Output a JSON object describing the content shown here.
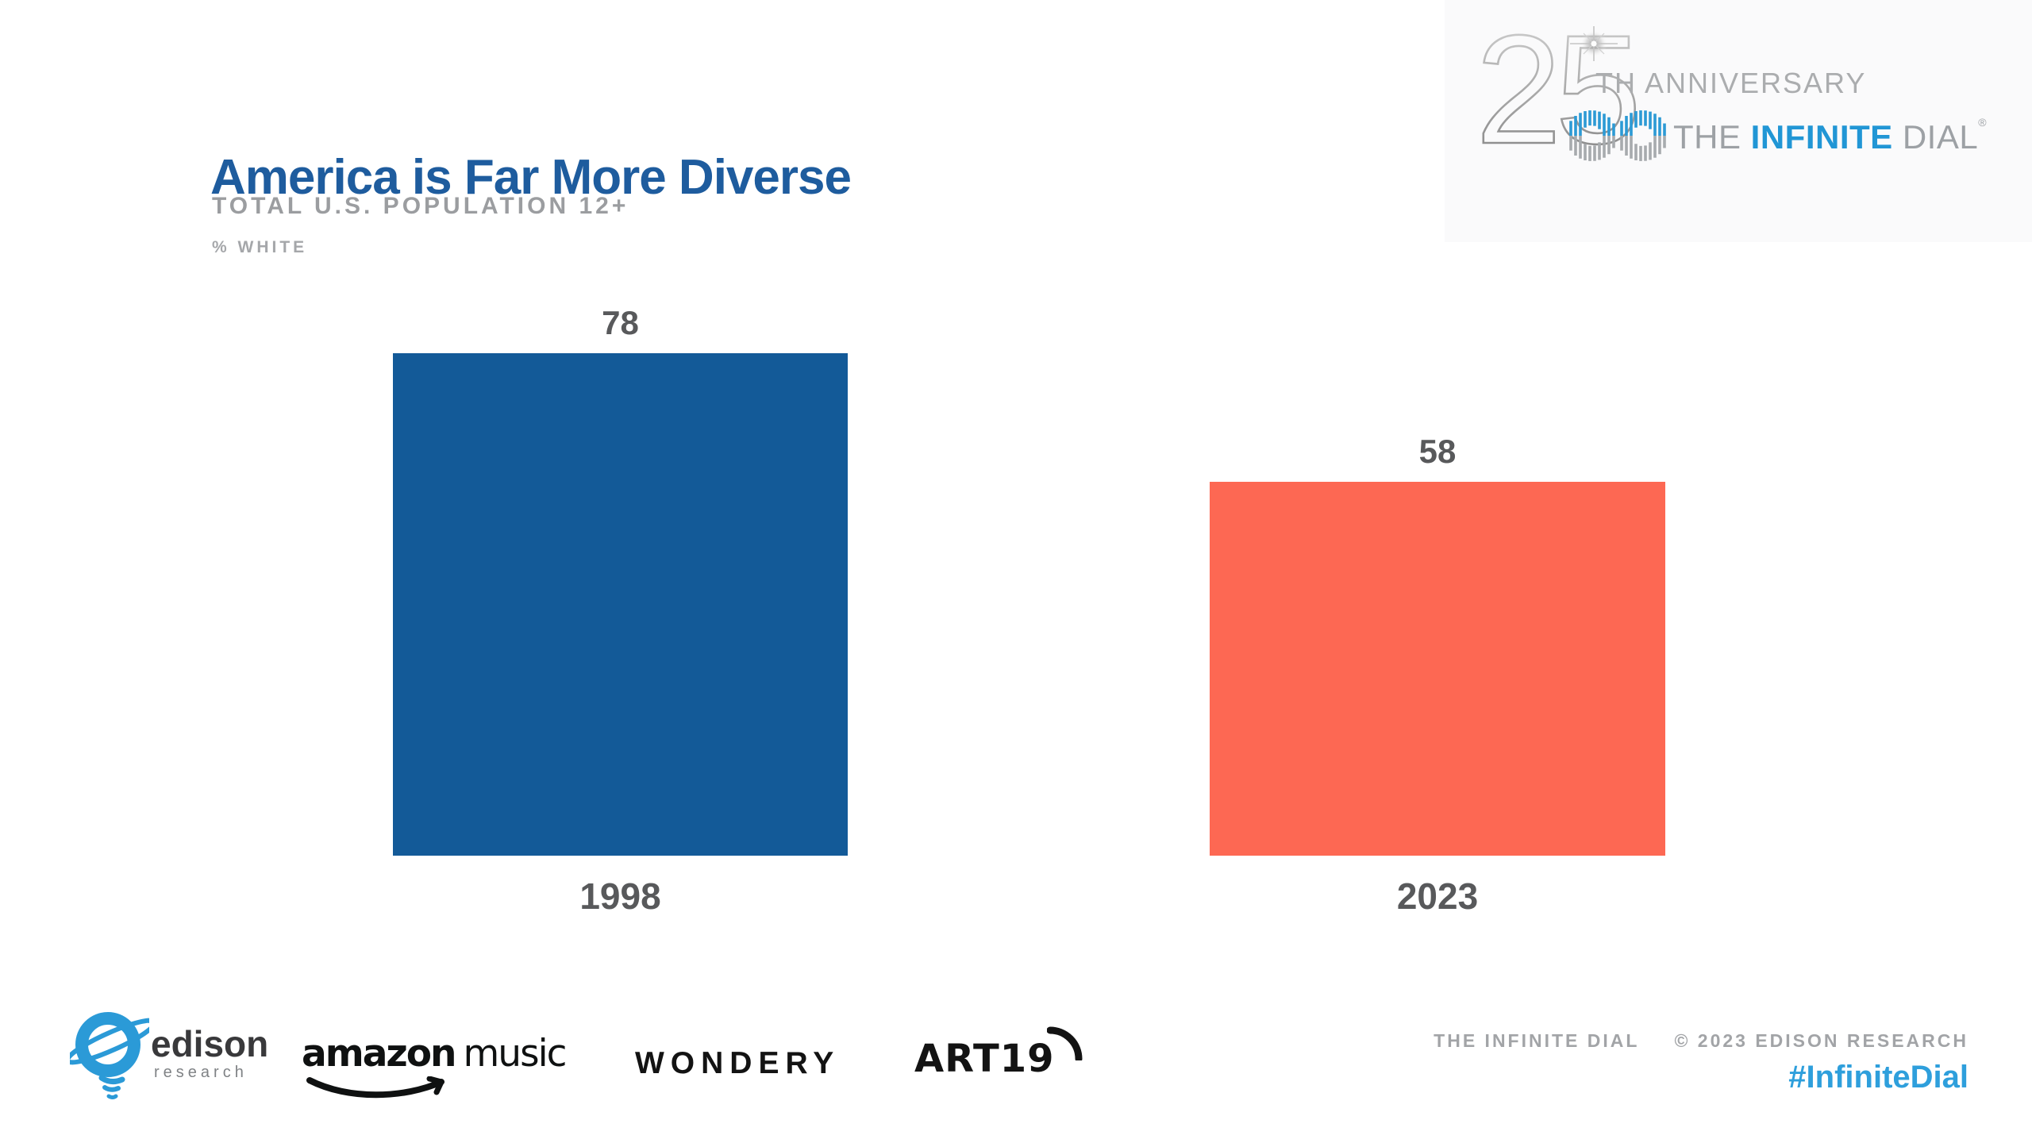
{
  "header": {
    "title": "America is Far More Diverse",
    "title_color": "#1E5C9E",
    "subtitle": "TOTAL U.S. POPULATION 12+",
    "measure_label": "% WHITE"
  },
  "anniversary_logo": {
    "number": "25",
    "ordinal_suffix": "TH ANNIVERSARY",
    "brand_the": "THE",
    "brand_infinite": "INFINITE",
    "brand_dial": "DIAL",
    "registered_mark": "®",
    "infinite_color": "#2196D5"
  },
  "chart_data": {
    "type": "bar",
    "title": "America is Far More Diverse",
    "subtitle": "TOTAL U.S. POPULATION 12+",
    "ylabel": "% WHITE",
    "categories": [
      "1998",
      "2023"
    ],
    "values": [
      78,
      58
    ],
    "bar_colors": [
      "#135A98",
      "#FD6853"
    ],
    "value_label_color": "#58595B",
    "ylim": [
      0,
      100
    ],
    "grid": false,
    "legend": false
  },
  "footer": {
    "edison": {
      "name": "edison",
      "sub": "research"
    },
    "amazon": {
      "bold": "amazon",
      "light": "music"
    },
    "wondery": "WONDERY",
    "art19": "ART19",
    "brand_line": "THE INFINITE DIAL",
    "copyright": "© 2023 EDISON RESEARCH",
    "hashtag": "#InfiniteDial",
    "hashtag_color": "#2E9FDC"
  }
}
